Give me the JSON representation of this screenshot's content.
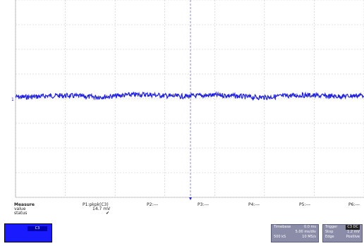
{
  "trigger_marker": "1",
  "measure": {
    "title": "Measure",
    "row_labels": [
      "value",
      "status"
    ],
    "p1": {
      "name": "P1:pkpk(C3)",
      "value": "14.7 mV",
      "status": "✔"
    },
    "params": [
      "P2:---",
      "P3:---",
      "P4:---",
      "P5:---",
      "P6:---"
    ]
  },
  "channel": {
    "tag": "C3"
  },
  "timebase": {
    "title": "Timebase",
    "rows": [
      [
        "",
        "0.0 ms"
      ],
      [
        "",
        "5.00 ms/div"
      ],
      [
        "500 kS",
        "10 MS/s"
      ]
    ]
  },
  "trigger": {
    "title": "Trigger",
    "rows": [
      [
        "Stop",
        "1.2 mV"
      ],
      [
        "Edge",
        "Positive"
      ]
    ]
  },
  "colors": {
    "trace": "#1f1fe6",
    "grid": "#c8c8c8",
    "panel": "#8a8ca8"
  }
}
